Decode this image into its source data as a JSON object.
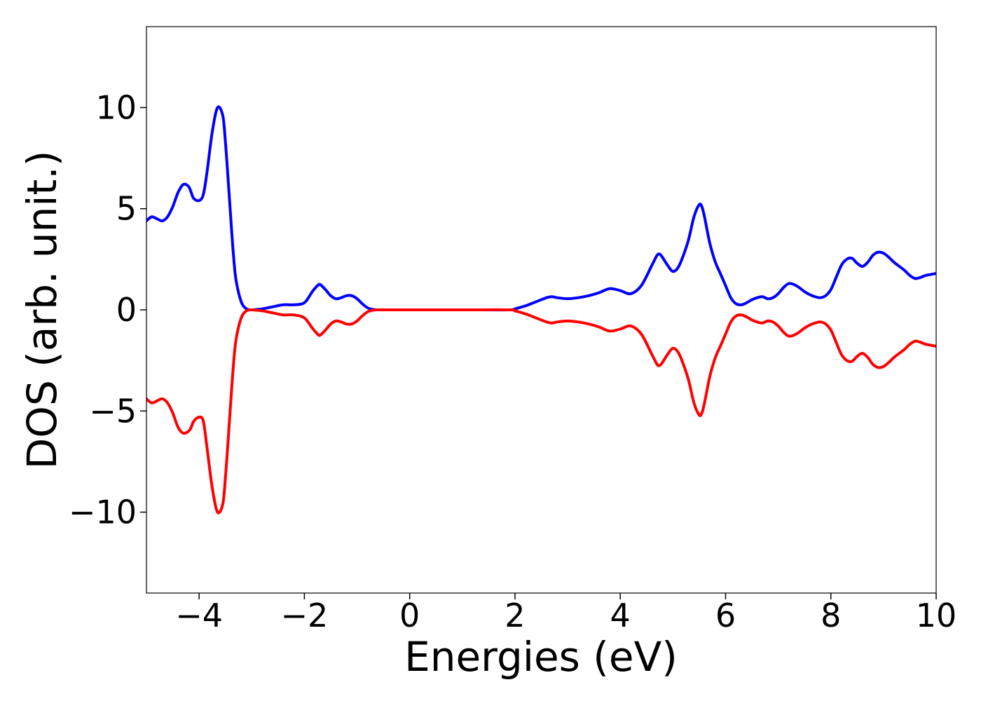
{
  "chart_data": {
    "type": "line",
    "xlabel": "Energies (eV)",
    "ylabel": "DOS (arb. unit.)",
    "xlim": [
      -5,
      10
    ],
    "ylim": [
      -14,
      14
    ],
    "x_ticks": [
      -4,
      -2,
      0,
      2,
      4,
      6,
      8,
      10
    ],
    "x_tick_labels": [
      "−4",
      "−2",
      "0",
      "2",
      "4",
      "6",
      "8",
      "10"
    ],
    "y_ticks": [
      -10,
      -5,
      0,
      5,
      10
    ],
    "y_tick_labels": [
      "−10",
      "−5",
      "0",
      "5",
      "10"
    ],
    "grid": false,
    "legend": "none",
    "series": [
      {
        "color": "#0000ff",
        "x": [
          -5.0,
          -4.9,
          -4.8,
          -4.7,
          -4.6,
          -4.5,
          -4.4,
          -4.3,
          -4.2,
          -4.15,
          -4.1,
          -4.0,
          -3.92,
          -3.85,
          -3.75,
          -3.65,
          -3.55,
          -3.5,
          -3.45,
          -3.4,
          -3.35,
          -3.3,
          -3.2,
          -3.1,
          -3.0,
          -2.9,
          -2.8,
          -2.6,
          -2.4,
          -2.2,
          -2.0,
          -1.85,
          -1.75,
          -1.7,
          -1.6,
          -1.5,
          -1.4,
          -1.3,
          -1.2,
          -1.1,
          -1.0,
          -0.9,
          -0.8,
          -0.7,
          -0.6,
          -0.5,
          0.0,
          1.0,
          1.9,
          2.0,
          2.2,
          2.4,
          2.6,
          2.7,
          2.8,
          3.0,
          3.2,
          3.4,
          3.6,
          3.8,
          4.0,
          4.2,
          4.4,
          4.6,
          4.7,
          4.75,
          4.8,
          4.9,
          5.0,
          5.1,
          5.2,
          5.3,
          5.4,
          5.5,
          5.55,
          5.6,
          5.7,
          5.8,
          5.9,
          6.0,
          6.1,
          6.2,
          6.3,
          6.4,
          6.5,
          6.6,
          6.7,
          6.8,
          6.9,
          7.0,
          7.1,
          7.2,
          7.3,
          7.4,
          7.5,
          7.6,
          7.7,
          7.8,
          7.9,
          8.0,
          8.1,
          8.2,
          8.3,
          8.4,
          8.5,
          8.6,
          8.7,
          8.8,
          8.9,
          9.0,
          9.1,
          9.2,
          9.3,
          9.4,
          9.5,
          9.6,
          9.7,
          9.8,
          9.9,
          10.0
        ],
        "y": [
          4.4,
          4.6,
          4.5,
          4.4,
          4.6,
          5.1,
          5.8,
          6.2,
          6.1,
          5.8,
          5.5,
          5.4,
          5.7,
          6.8,
          8.8,
          10.0,
          9.6,
          8.3,
          6.5,
          4.6,
          2.8,
          1.5,
          0.4,
          0.05,
          0.0,
          0.02,
          0.05,
          0.15,
          0.25,
          0.25,
          0.35,
          0.9,
          1.2,
          1.25,
          1.0,
          0.7,
          0.55,
          0.6,
          0.7,
          0.7,
          0.55,
          0.3,
          0.1,
          0.02,
          0.0,
          0.0,
          0.0,
          0.0,
          0.0,
          0.05,
          0.2,
          0.4,
          0.6,
          0.65,
          0.6,
          0.55,
          0.6,
          0.7,
          0.85,
          1.05,
          0.95,
          0.8,
          1.2,
          2.2,
          2.7,
          2.75,
          2.6,
          2.2,
          1.9,
          2.1,
          2.7,
          3.5,
          4.6,
          5.2,
          5.1,
          4.6,
          3.3,
          2.4,
          1.8,
          1.2,
          0.6,
          0.3,
          0.25,
          0.35,
          0.5,
          0.6,
          0.65,
          0.55,
          0.6,
          0.8,
          1.1,
          1.3,
          1.25,
          1.1,
          0.9,
          0.75,
          0.65,
          0.6,
          0.7,
          1.0,
          1.6,
          2.2,
          2.5,
          2.55,
          2.3,
          2.15,
          2.35,
          2.7,
          2.85,
          2.8,
          2.6,
          2.35,
          2.15,
          1.95,
          1.7,
          1.55,
          1.6,
          1.7,
          1.75,
          1.8
        ]
      },
      {
        "color": "#ff0000",
        "x": [
          -5.0,
          -4.9,
          -4.8,
          -4.7,
          -4.6,
          -4.5,
          -4.4,
          -4.3,
          -4.2,
          -4.15,
          -4.1,
          -4.0,
          -3.92,
          -3.85,
          -3.75,
          -3.65,
          -3.55,
          -3.5,
          -3.45,
          -3.4,
          -3.35,
          -3.3,
          -3.2,
          -3.1,
          -3.0,
          -2.9,
          -2.8,
          -2.6,
          -2.4,
          -2.2,
          -2.0,
          -1.85,
          -1.75,
          -1.7,
          -1.6,
          -1.5,
          -1.4,
          -1.3,
          -1.2,
          -1.1,
          -1.0,
          -0.9,
          -0.8,
          -0.7,
          -0.6,
          -0.5,
          0.0,
          1.0,
          1.9,
          2.0,
          2.2,
          2.4,
          2.6,
          2.7,
          2.8,
          3.0,
          3.2,
          3.4,
          3.6,
          3.8,
          4.0,
          4.2,
          4.4,
          4.6,
          4.7,
          4.75,
          4.8,
          4.9,
          5.0,
          5.1,
          5.2,
          5.3,
          5.4,
          5.5,
          5.55,
          5.6,
          5.7,
          5.8,
          5.9,
          6.0,
          6.1,
          6.2,
          6.3,
          6.4,
          6.5,
          6.6,
          6.7,
          6.8,
          6.9,
          7.0,
          7.1,
          7.2,
          7.3,
          7.4,
          7.5,
          7.6,
          7.7,
          7.8,
          7.9,
          8.0,
          8.1,
          8.2,
          8.3,
          8.4,
          8.5,
          8.6,
          8.7,
          8.8,
          8.9,
          9.0,
          9.1,
          9.2,
          9.3,
          9.4,
          9.5,
          9.6,
          9.7,
          9.8,
          9.9,
          10.0
        ],
        "y": [
          -4.4,
          -4.6,
          -4.5,
          -4.4,
          -4.6,
          -5.1,
          -5.8,
          -6.1,
          -6.0,
          -5.8,
          -5.5,
          -5.3,
          -5.5,
          -6.8,
          -8.8,
          -10.0,
          -9.6,
          -8.3,
          -6.5,
          -4.6,
          -2.8,
          -1.5,
          -0.4,
          -0.05,
          0.0,
          -0.02,
          -0.05,
          -0.15,
          -0.25,
          -0.25,
          -0.4,
          -0.9,
          -1.2,
          -1.25,
          -1.0,
          -0.7,
          -0.55,
          -0.6,
          -0.7,
          -0.7,
          -0.55,
          -0.3,
          -0.1,
          -0.02,
          0.0,
          0.0,
          0.0,
          0.0,
          0.0,
          -0.05,
          -0.2,
          -0.4,
          -0.6,
          -0.65,
          -0.6,
          -0.55,
          -0.6,
          -0.7,
          -0.85,
          -1.05,
          -0.95,
          -0.8,
          -1.2,
          -2.2,
          -2.7,
          -2.75,
          -2.6,
          -2.2,
          -1.9,
          -2.1,
          -2.7,
          -3.5,
          -4.6,
          -5.2,
          -5.1,
          -4.6,
          -3.3,
          -2.4,
          -1.8,
          -1.2,
          -0.6,
          -0.3,
          -0.25,
          -0.35,
          -0.5,
          -0.6,
          -0.65,
          -0.55,
          -0.6,
          -0.8,
          -1.1,
          -1.3,
          -1.25,
          -1.1,
          -0.9,
          -0.75,
          -0.65,
          -0.6,
          -0.7,
          -1.0,
          -1.6,
          -2.2,
          -2.5,
          -2.55,
          -2.3,
          -2.15,
          -2.35,
          -2.7,
          -2.85,
          -2.8,
          -2.6,
          -2.35,
          -2.15,
          -1.95,
          -1.7,
          -1.55,
          -1.6,
          -1.7,
          -1.75,
          -1.8
        ]
      }
    ]
  }
}
